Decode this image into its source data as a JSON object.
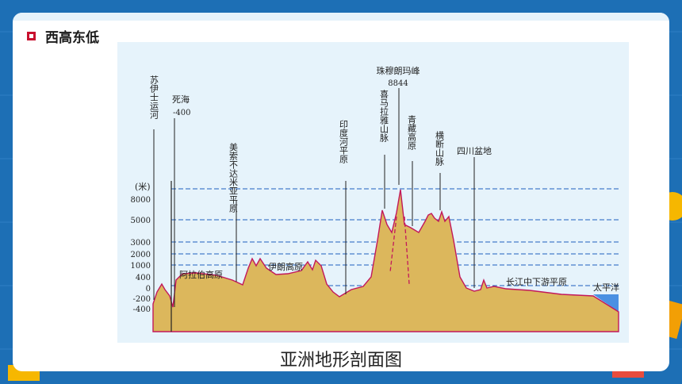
{
  "slide": {
    "heading": "西高东低",
    "caption": "亚洲地形剖面图"
  },
  "diagram": {
    "y_axis_unit": "(米)",
    "y_ticks": [
      "8000",
      "5000",
      "3000",
      "2000",
      "1000",
      "400",
      "0",
      "-200",
      "-400"
    ],
    "labels": {
      "suez": "苏伊士运河",
      "dead_sea": "死海",
      "dead_sea_value": "-400",
      "mesopotamia": "美索不达米亚平原",
      "arabia": "阿拉伯高原",
      "iran": "伊朗高原",
      "indus": "印度河平原",
      "everest": "珠穆朗玛峰",
      "everest_value": "8844",
      "himalaya": "喜马拉雅山脉",
      "tibet": "青藏高原",
      "hengduan": "横断山脉",
      "sichuan": "四川盆地",
      "yangtze": "长江中下游平原",
      "pacific": "太平洋"
    },
    "colors": {
      "land": "#dcb75c",
      "profile": "#c2185b",
      "sea": "#4a90e2",
      "grid": "#1f5fbf"
    }
  }
}
